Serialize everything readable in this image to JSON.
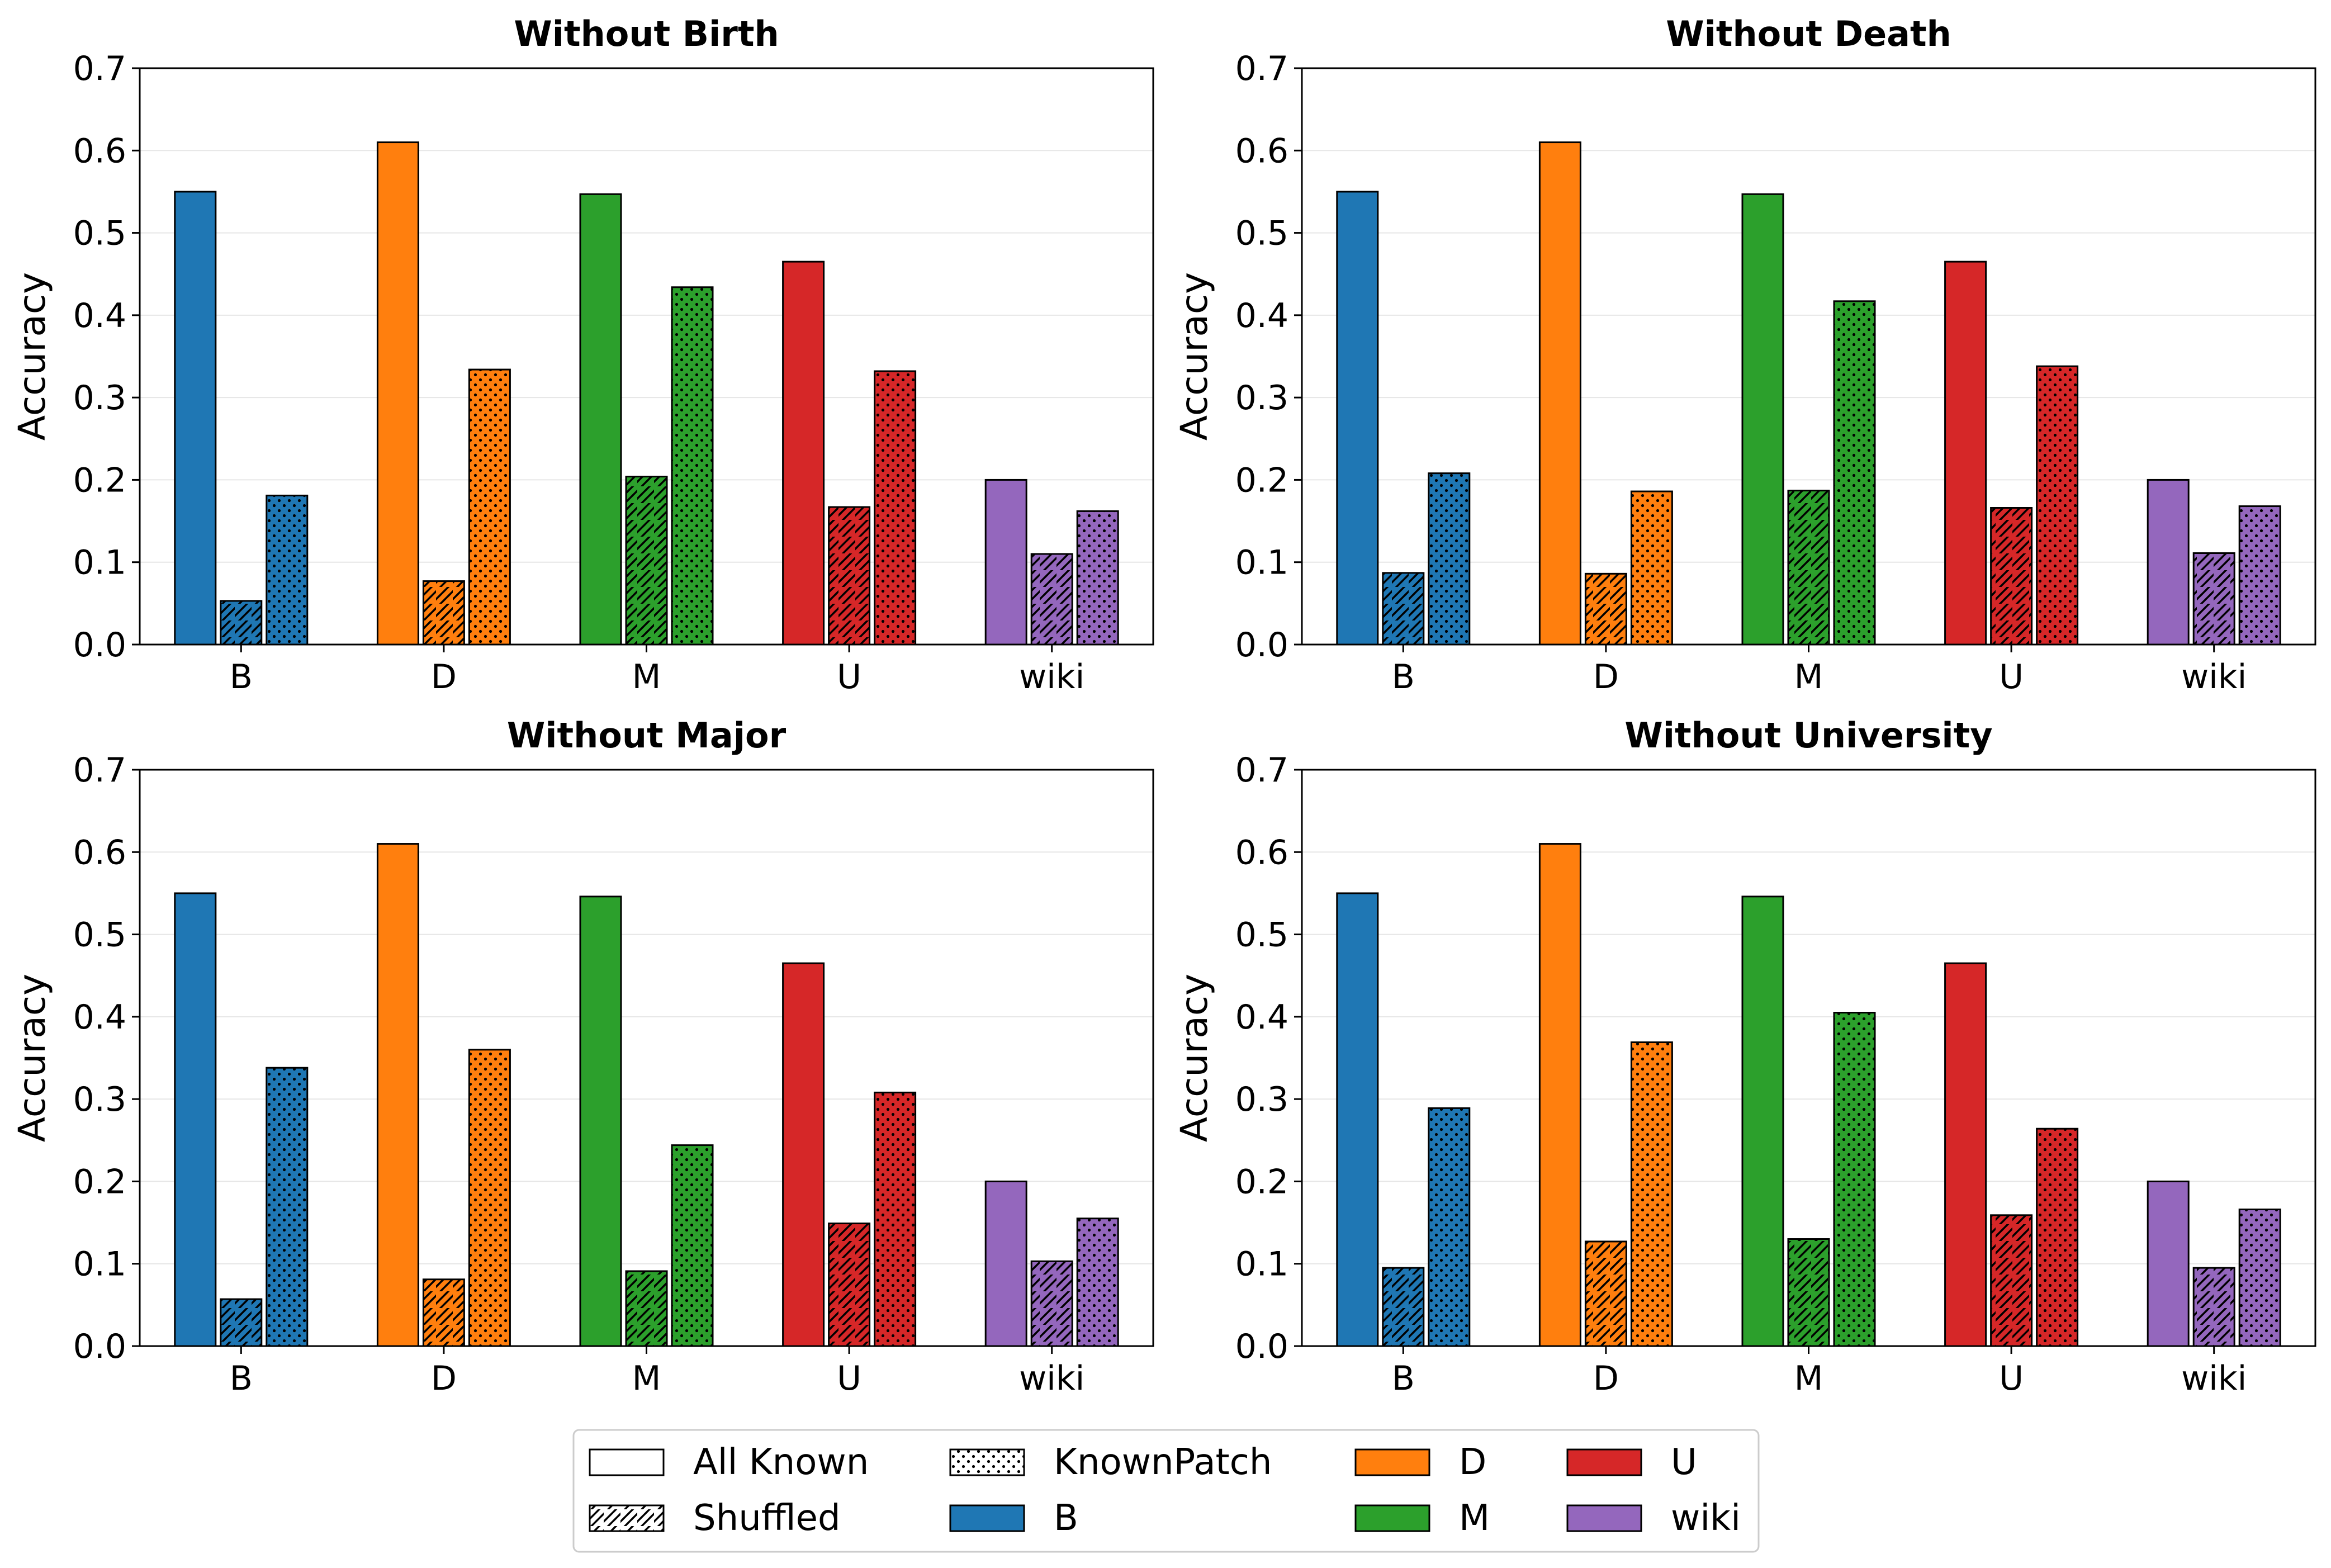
{
  "chart_data": [
    {
      "type": "bar",
      "title": "Without Birth",
      "xlabel": "",
      "ylabel": "Accuracy",
      "ylim": [
        0,
        0.7
      ],
      "yticks": [
        "0.0",
        "0.1",
        "0.2",
        "0.3",
        "0.4",
        "0.5",
        "0.6",
        "0.7"
      ],
      "grid": "y",
      "categories": [
        "B",
        "D",
        "M",
        "U",
        "wiki"
      ],
      "series": [
        {
          "name": "All Known",
          "values": [
            0.55,
            0.61,
            0.547,
            0.465,
            0.2
          ]
        },
        {
          "name": "Shuffled",
          "values": [
            0.053,
            0.077,
            0.204,
            0.167,
            0.11
          ]
        },
        {
          "name": "KnownPatch",
          "values": [
            0.181,
            0.334,
            0.434,
            0.332,
            0.162
          ]
        }
      ]
    },
    {
      "type": "bar",
      "title": "Without Death",
      "xlabel": "",
      "ylabel": "Accuracy",
      "ylim": [
        0,
        0.7
      ],
      "yticks": [
        "0.0",
        "0.1",
        "0.2",
        "0.3",
        "0.4",
        "0.5",
        "0.6",
        "0.7"
      ],
      "grid": "y",
      "categories": [
        "B",
        "D",
        "M",
        "U",
        "wiki"
      ],
      "series": [
        {
          "name": "All Known",
          "values": [
            0.55,
            0.61,
            0.547,
            0.465,
            0.2
          ]
        },
        {
          "name": "Shuffled",
          "values": [
            0.087,
            0.086,
            0.187,
            0.166,
            0.111
          ]
        },
        {
          "name": "KnownPatch",
          "values": [
            0.208,
            0.186,
            0.417,
            0.338,
            0.168
          ]
        }
      ]
    },
    {
      "type": "bar",
      "title": "Without Major",
      "xlabel": "",
      "ylabel": "Accuracy",
      "ylim": [
        0,
        0.7
      ],
      "yticks": [
        "0.0",
        "0.1",
        "0.2",
        "0.3",
        "0.4",
        "0.5",
        "0.6",
        "0.7"
      ],
      "grid": "y",
      "categories": [
        "B",
        "D",
        "M",
        "U",
        "wiki"
      ],
      "series": [
        {
          "name": "All Known",
          "values": [
            0.55,
            0.61,
            0.546,
            0.465,
            0.2
          ]
        },
        {
          "name": "Shuffled",
          "values": [
            0.057,
            0.081,
            0.091,
            0.149,
            0.103
          ]
        },
        {
          "name": "KnownPatch",
          "values": [
            0.338,
            0.36,
            0.244,
            0.308,
            0.155
          ]
        }
      ]
    },
    {
      "type": "bar",
      "title": "Without University",
      "xlabel": "",
      "ylabel": "Accuracy",
      "ylim": [
        0,
        0.7
      ],
      "yticks": [
        "0.0",
        "0.1",
        "0.2",
        "0.3",
        "0.4",
        "0.5",
        "0.6",
        "0.7"
      ],
      "grid": "y",
      "categories": [
        "B",
        "D",
        "M",
        "U",
        "wiki"
      ],
      "series": [
        {
          "name": "All Known",
          "values": [
            0.55,
            0.61,
            0.546,
            0.465,
            0.2
          ]
        },
        {
          "name": "Shuffled",
          "values": [
            0.095,
            0.127,
            0.13,
            0.159,
            0.095
          ]
        },
        {
          "name": "KnownPatch",
          "values": [
            0.289,
            0.369,
            0.405,
            0.264,
            0.166
          ]
        }
      ]
    }
  ],
  "colors": {
    "B": "#1f77b4",
    "D": "#ff7f0e",
    "M": "#2ca02c",
    "U": "#d62728",
    "wiki": "#9467bd"
  },
  "legend": {
    "placement": "bottom-center",
    "columns": 4,
    "items": [
      {
        "label": "All Known",
        "kind": "pattern",
        "pattern": "none"
      },
      {
        "label": "Shuffled",
        "kind": "pattern",
        "pattern": "hatch"
      },
      {
        "label": "KnownPatch",
        "kind": "pattern",
        "pattern": "dots"
      },
      {
        "label": "B",
        "kind": "color",
        "color": "#1f77b4"
      },
      {
        "label": "D",
        "kind": "color",
        "color": "#ff7f0e"
      },
      {
        "label": "M",
        "kind": "color",
        "color": "#2ca02c"
      },
      {
        "label": "U",
        "kind": "color",
        "color": "#d62728"
      },
      {
        "label": "wiki",
        "kind": "color",
        "color": "#9467bd"
      }
    ]
  }
}
